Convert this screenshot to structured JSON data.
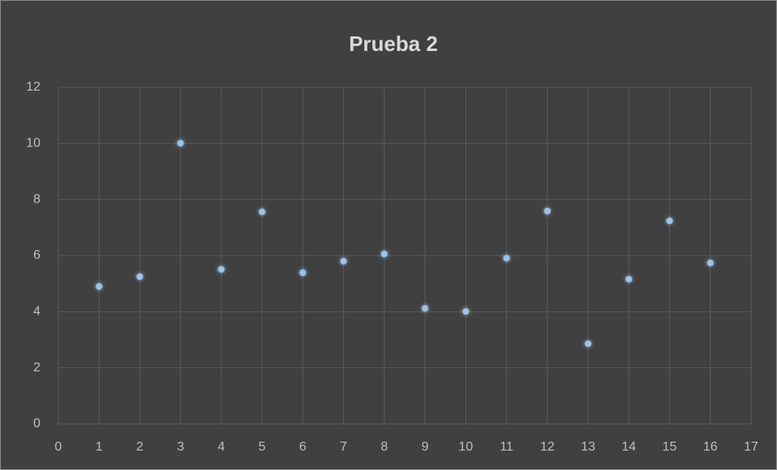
{
  "chart_data": {
    "type": "scatter",
    "title": "Prueba 2",
    "x": [
      1,
      2,
      3,
      4,
      5,
      6,
      7,
      8,
      9,
      10,
      11,
      12,
      13,
      14,
      15,
      16
    ],
    "values": [
      4.9,
      5.25,
      10.01,
      5.51,
      7.56,
      5.39,
      5.8,
      6.06,
      4.12,
      4.01,
      5.91,
      7.59,
      2.86,
      5.16,
      7.24,
      5.74
    ],
    "color": "#9dc3e6",
    "xlim": [
      0,
      17
    ],
    "xticks": [
      0,
      1,
      2,
      3,
      4,
      5,
      6,
      7,
      8,
      9,
      10,
      11,
      12,
      13,
      14,
      15,
      16,
      17
    ],
    "ylim": [
      0,
      12
    ],
    "yticks": [
      0,
      2,
      4,
      6,
      8,
      10,
      12
    ],
    "grid": true
  }
}
